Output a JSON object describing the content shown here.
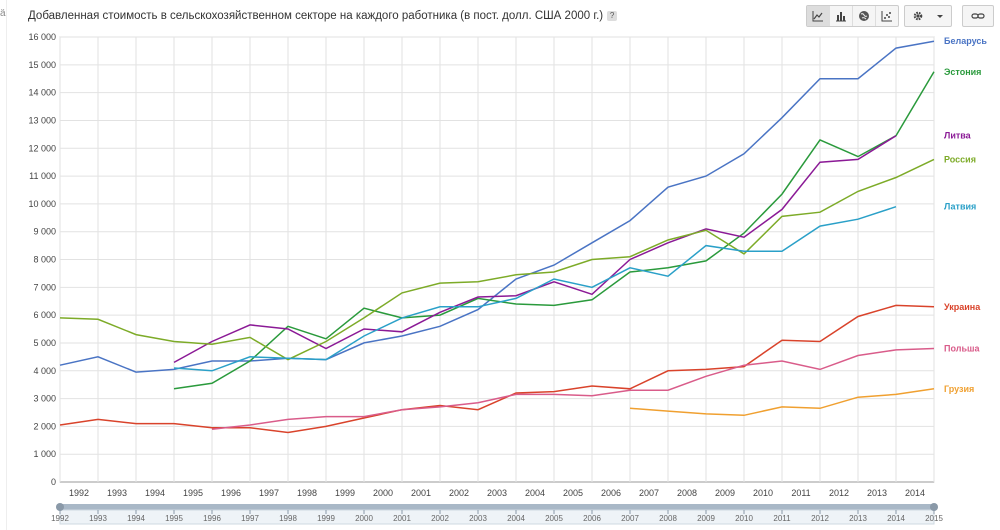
{
  "header": {
    "title": "Добавленная стоимость в сельскохозяйственном секторе на каждого работника (в пост. долл. США 2000 г.)",
    "help": "?"
  },
  "toolbar": {
    "view_icons": [
      "line-chart-icon",
      "bar-chart-icon",
      "map-icon",
      "scatter-chart-icon"
    ],
    "settings_icon": "gear-icon",
    "dropdown_icon": "chevron-down-icon",
    "link_icon": "link-icon"
  },
  "chart_data": {
    "type": "line",
    "title": "Добавленная стоимость в сельскохозяйственном секторе на каждого работника (в пост. долл. США 2000 г.)",
    "x_labels": [
      "1992",
      "1993",
      "1994",
      "1995",
      "1996",
      "1997",
      "1998",
      "1999",
      "2000",
      "2001",
      "2002",
      "2003",
      "2004",
      "2005",
      "2006",
      "2007",
      "2008",
      "2009",
      "2010",
      "2011",
      "2012",
      "2013",
      "2014"
    ],
    "x": [
      1991.5,
      1992.5,
      1993.5,
      1994.5,
      1995.5,
      1996.5,
      1997.5,
      1998.5,
      1999.5,
      2000.5,
      2001.5,
      2002.5,
      2003.5,
      2004.5,
      2005.5,
      2006.5,
      2007.5,
      2008.5,
      2009.5,
      2010.5,
      2011.5,
      2012.5,
      2013.5,
      2014.5
    ],
    "xlim": [
      1991.5,
      2014.5
    ],
    "ylim": [
      0,
      16000
    ],
    "yticks": [
      "0",
      "1 000",
      "2 000",
      "3 000",
      "4 000",
      "5 000",
      "6 000",
      "7 000",
      "8 000",
      "9 000",
      "10 000",
      "11 000",
      "12 000",
      "13 000",
      "14 000",
      "15 000",
      "16 000"
    ],
    "grid": true,
    "slider_labels": [
      "1992",
      "1993",
      "1994",
      "1995",
      "1996",
      "1997",
      "1998",
      "1999",
      "2000",
      "2001",
      "2002",
      "2003",
      "2004",
      "2005",
      "2006",
      "2007",
      "2008",
      "2009",
      "2010",
      "2011",
      "2012",
      "2013",
      "2014",
      "2015"
    ],
    "series": [
      {
        "name": "Беларусь",
        "color": "#4a74c4",
        "values": [
          4200,
          4500,
          3950,
          4050,
          4350,
          4350,
          4450,
          4400,
          5000,
          5250,
          5600,
          6200,
          7300,
          7800,
          8600,
          9400,
          10600,
          11000,
          11800,
          13100,
          14500,
          14500,
          15600,
          15850
        ]
      },
      {
        "name": "Эстония",
        "color": "#2a9a3c",
        "values": [
          null,
          null,
          null,
          3350,
          3550,
          4350,
          5600,
          5150,
          6250,
          5900,
          6000,
          6600,
          6400,
          6350,
          6550,
          7550,
          7700,
          7950,
          8950,
          10350,
          12300,
          11700,
          12450,
          14750
        ]
      },
      {
        "name": "Литва",
        "color": "#8b1a96",
        "values": [
          null,
          null,
          null,
          4300,
          5050,
          5650,
          5500,
          4800,
          5500,
          5400,
          6100,
          6650,
          6700,
          7200,
          6750,
          8000,
          8600,
          9100,
          8800,
          9800,
          11500,
          11600,
          12450,
          null
        ]
      },
      {
        "name": "Россия",
        "color": "#7dab28",
        "values": [
          5900,
          5850,
          5300,
          5050,
          4950,
          5200,
          4400,
          5050,
          5900,
          6800,
          7150,
          7200,
          7450,
          7550,
          8000,
          8100,
          8700,
          9050,
          8200,
          9550,
          9700,
          10450,
          10950,
          11600
        ]
      },
      {
        "name": "Латвия",
        "color": "#2aa0c8",
        "values": [
          null,
          null,
          null,
          4100,
          4000,
          4500,
          4450,
          4400,
          5250,
          5900,
          6300,
          6300,
          6600,
          7300,
          7000,
          7700,
          7400,
          8500,
          8300,
          8300,
          9200,
          9450,
          9900,
          null
        ]
      },
      {
        "name": "Украина",
        "color": "#d9432b",
        "values": [
          2050,
          2250,
          2100,
          2100,
          1950,
          1950,
          1780,
          2000,
          2300,
          2600,
          2750,
          2600,
          3200,
          3250,
          3450,
          3350,
          4000,
          4050,
          4150,
          5100,
          5050,
          5950,
          6350,
          6300
        ]
      },
      {
        "name": "Польша",
        "color": "#d95c8a",
        "values": [
          null,
          null,
          null,
          null,
          1900,
          2050,
          2250,
          2350,
          2350,
          2600,
          2700,
          2850,
          3150,
          3150,
          3100,
          3300,
          3300,
          3800,
          4200,
          4350,
          4050,
          4550,
          4750,
          4800
        ]
      },
      {
        "name": "Грузия",
        "color": "#f0a030",
        "values": [
          null,
          null,
          null,
          null,
          null,
          null,
          null,
          null,
          null,
          null,
          null,
          null,
          null,
          null,
          null,
          2650,
          2550,
          2450,
          2400,
          2700,
          2650,
          3050,
          3150,
          3350
        ]
      }
    ]
  }
}
